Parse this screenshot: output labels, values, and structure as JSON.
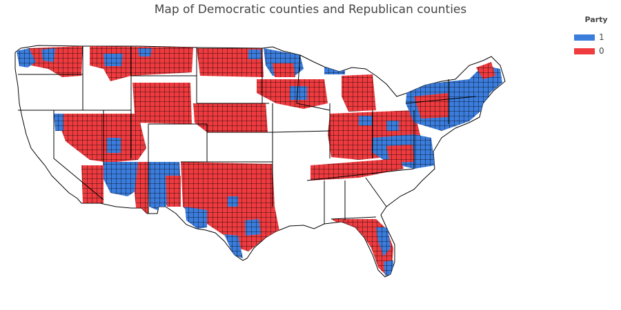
{
  "chart": {
    "title": "Map of Democratic counties and Republican counties"
  },
  "legend": {
    "title": "Party",
    "items": [
      {
        "label": "1",
        "color": "#3b7ddd"
      },
      {
        "label": "0",
        "color": "#ef3b3f"
      }
    ]
  },
  "map": {
    "type": "choropleth",
    "region": "contiguous-united-states",
    "colors": {
      "democratic": "#3b7ddd",
      "republican": "#ef3b3f",
      "no_data": "#ffffff",
      "border": "#000000"
    }
  }
}
